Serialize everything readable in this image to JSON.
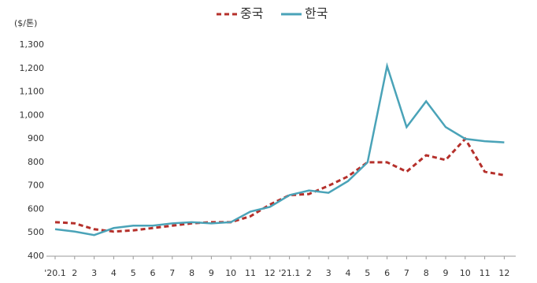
{
  "chart_data": {
    "type": "line",
    "y_label": "($/톤)",
    "categories": [
      "'20.1",
      "2",
      "3",
      "4",
      "5",
      "6",
      "7",
      "8",
      "9",
      "10",
      "11",
      "12",
      "'21.1",
      "2",
      "3",
      "4",
      "5",
      "6",
      "7",
      "8",
      "9",
      "10",
      "11",
      "12"
    ],
    "series": [
      {
        "name": "중국",
        "color": "#b5302b",
        "dashed": true,
        "values": [
          545,
          540,
          515,
          505,
          510,
          520,
          530,
          540,
          545,
          545,
          570,
          620,
          660,
          665,
          700,
          740,
          800,
          800,
          760,
          830,
          810,
          900,
          760,
          745
        ]
      },
      {
        "name": "한국",
        "color": "#4aa3b8",
        "dashed": false,
        "values": [
          515,
          505,
          490,
          520,
          530,
          530,
          540,
          545,
          540,
          545,
          590,
          610,
          660,
          680,
          670,
          720,
          800,
          1210,
          950,
          1060,
          950,
          900,
          890,
          885
        ]
      }
    ],
    "ylim": [
      400,
      1300
    ],
    "yticks": [
      400,
      500,
      600,
      700,
      800,
      900,
      {
        "value": 1000,
        "label": "1,000"
      },
      {
        "value": 1100,
        "label": "1,100"
      },
      {
        "value": 1200,
        "label": "1,200"
      },
      {
        "value": 1300,
        "label": "1,300"
      }
    ],
    "grid": false
  }
}
